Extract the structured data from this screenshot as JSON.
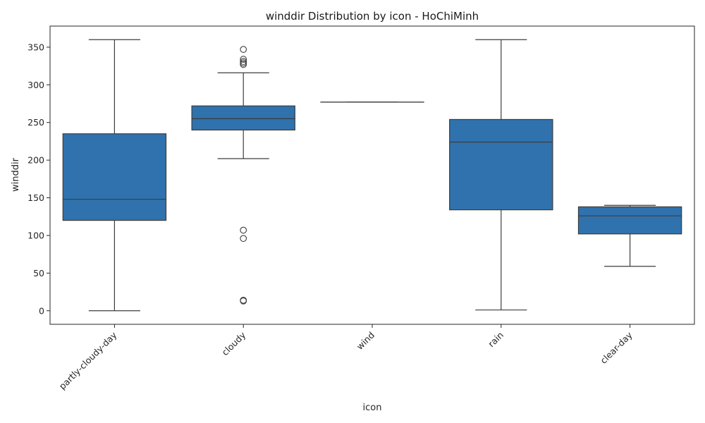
{
  "chart_data": {
    "type": "box",
    "title": "winddir Distribution by icon - HoChiMinh",
    "xlabel": "icon",
    "ylabel": "winddir",
    "ylim": [
      -18,
      378
    ],
    "yticks": [
      0,
      50,
      100,
      150,
      200,
      250,
      300,
      350
    ],
    "grid": false,
    "box_color": "#2f72ad",
    "line_color": "#3d3d3d",
    "categories": [
      "partly-cloudy-day",
      "cloudy",
      "wind",
      "rain",
      "clear-day"
    ],
    "boxes": [
      {
        "category": "partly-cloudy-day",
        "whisker_low": 0,
        "q1": 120,
        "median": 148,
        "q3": 235,
        "whisker_high": 360,
        "outliers": []
      },
      {
        "category": "cloudy",
        "whisker_low": 202,
        "q1": 240,
        "median": 255,
        "q3": 272,
        "whisker_high": 316,
        "outliers": [
          13,
          14,
          96,
          107,
          327,
          329,
          331,
          334,
          347
        ]
      },
      {
        "category": "wind",
        "whisker_low": 277,
        "q1": 277,
        "median": 277,
        "q3": 277,
        "whisker_high": 277,
        "outliers": []
      },
      {
        "category": "rain",
        "whisker_low": 1,
        "q1": 134,
        "median": 224,
        "q3": 254,
        "whisker_high": 360,
        "outliers": []
      },
      {
        "category": "clear-day",
        "whisker_low": 59,
        "q1": 102,
        "median": 126,
        "q3": 138,
        "whisker_high": 140,
        "outliers": []
      }
    ]
  }
}
